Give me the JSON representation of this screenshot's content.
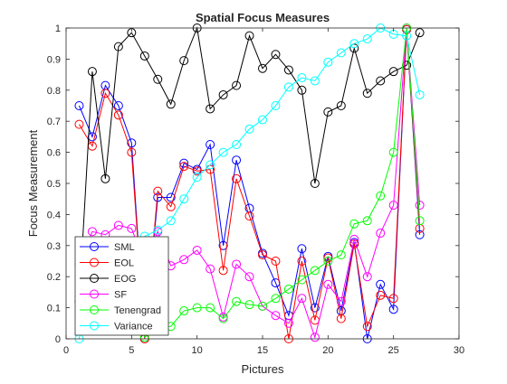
{
  "chart_data": {
    "type": "line",
    "title": "Spatial Focus Measures",
    "xlabel": "Pictures",
    "ylabel": "Focus Measurement",
    "xlim": [
      0,
      30
    ],
    "ylim": [
      0,
      1
    ],
    "xticks": [
      0,
      5,
      10,
      15,
      20,
      25,
      30
    ],
    "yticks": [
      0,
      0.1,
      0.2,
      0.3,
      0.4,
      0.5,
      0.6,
      0.7,
      0.8,
      0.9,
      1
    ],
    "xtick_labels": [
      "0",
      "5",
      "10",
      "15",
      "20",
      "25",
      "30"
    ],
    "ytick_labels": [
      "0",
      "0.1",
      "0.2",
      "0.3",
      "0.4",
      "0.5",
      "0.6",
      "0.7",
      "0.8",
      "0.9",
      "1"
    ],
    "grid": false,
    "legend_position": "bottom-left",
    "marker": "circle",
    "x": [
      1,
      2,
      3,
      4,
      5,
      6,
      7,
      8,
      9,
      10,
      11,
      12,
      13,
      14,
      15,
      16,
      17,
      18,
      19,
      20,
      21,
      22,
      23,
      24,
      25,
      26,
      27
    ],
    "series": [
      {
        "name": "SML",
        "color": "#0000ff",
        "values": [
          0.75,
          0.65,
          0.815,
          0.75,
          0.63,
          0.0,
          0.455,
          0.455,
          0.565,
          0.545,
          0.625,
          0.3,
          0.575,
          0.42,
          0.275,
          0.18,
          0.075,
          0.29,
          0.1,
          0.265,
          0.09,
          0.31,
          0.0,
          0.175,
          0.095,
          0.995,
          0.335
        ]
      },
      {
        "name": "EOL",
        "color": "#ff0000",
        "values": [
          0.69,
          0.62,
          0.79,
          0.72,
          0.6,
          0.0,
          0.475,
          0.425,
          0.555,
          0.54,
          0.545,
          0.22,
          0.515,
          0.395,
          0.27,
          0.25,
          0.0,
          0.25,
          0.06,
          0.26,
          0.065,
          0.305,
          0.04,
          0.14,
          0.13,
          0.995,
          0.355
        ]
      },
      {
        "name": "EOG",
        "color": "#000000",
        "values": [
          0.12,
          0.86,
          0.515,
          0.94,
          0.985,
          0.91,
          0.835,
          0.755,
          0.895,
          1.0,
          0.74,
          0.785,
          0.815,
          0.975,
          0.87,
          0.915,
          0.865,
          0.8,
          0.5,
          0.73,
          0.75,
          0.935,
          0.79,
          0.83,
          0.86,
          0.88,
          0.985
        ]
      },
      {
        "name": "SF",
        "color": "#ff00ff",
        "values": [
          0.24,
          0.345,
          0.335,
          0.365,
          0.355,
          0.245,
          0.345,
          0.235,
          0.255,
          0.285,
          0.225,
          0.07,
          0.24,
          0.2,
          0.105,
          0.075,
          0.05,
          0.13,
          0.005,
          0.175,
          0.12,
          0.32,
          0.2,
          0.34,
          0.43,
          1.0,
          0.43
        ]
      },
      {
        "name": "Tenengrad",
        "color": "#00ff00",
        "values": [
          0.135,
          0.3,
          0.1,
          0.22,
          0.1,
          0.005,
          0.04,
          0.04,
          0.09,
          0.1,
          0.1,
          0.065,
          0.12,
          0.11,
          0.105,
          0.13,
          0.16,
          0.19,
          0.22,
          0.25,
          0.27,
          0.37,
          0.38,
          0.46,
          0.6,
          1.0,
          0.38
        ]
      },
      {
        "name": "Variance",
        "color": "#00ffff",
        "values": [
          0.0,
          0.28,
          0.2,
          0.165,
          0.2,
          0.33,
          0.35,
          0.38,
          0.45,
          0.52,
          0.56,
          0.6,
          0.625,
          0.675,
          0.705,
          0.75,
          0.81,
          0.84,
          0.83,
          0.89,
          0.92,
          0.95,
          0.965,
          1.0,
          0.98,
          0.975,
          0.785
        ]
      }
    ]
  }
}
